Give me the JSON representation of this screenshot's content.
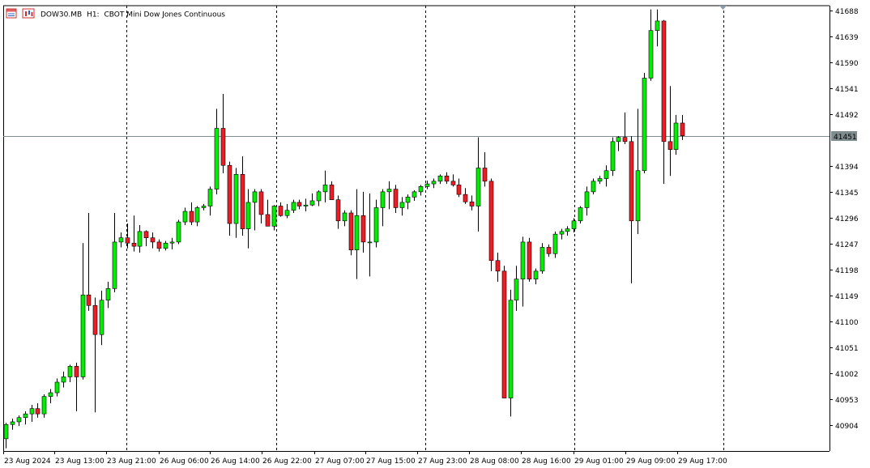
{
  "window": {
    "symbol": "DOW30.MB",
    "timeframe": "H1:",
    "description": "CBOT Mini Dow Jones Continuous",
    "icons": [
      "symbol-list-icon",
      "chart-type-icon"
    ]
  },
  "colors": {
    "bull": "#00ee00",
    "bear": "#ee1c24",
    "outline": "#000000",
    "price_line": "#7f8c8d",
    "price_label_bg": "#7f8c8d",
    "grid_separator": "#000000"
  },
  "chart_data": {
    "type": "candlestick",
    "title": "",
    "ylim": [
      40860,
      41710
    ],
    "current_price_label": "41451",
    "y_ticks": [
      41688,
      41639,
      41590,
      41541,
      41492,
      41394,
      41345,
      41296,
      41247,
      41198,
      41149,
      41100,
      41051,
      41002,
      40953,
      40904
    ],
    "x_labels": [
      "23 Aug 2024",
      "23 Aug 13:00",
      "23 Aug 21:00",
      "26 Aug 06:00",
      "26 Aug 14:00",
      "26 Aug 22:00",
      "27 Aug 07:00",
      "27 Aug 15:00",
      "27 Aug 23:00",
      "28 Aug 08:00",
      "28 Aug 16:00",
      "29 Aug 01:00",
      "29 Aug 09:00",
      "29 Aug 17:00"
    ],
    "candles": [
      {
        "o": 40878,
        "h": 40908,
        "l": 40860,
        "c": 40905
      },
      {
        "o": 40905,
        "h": 40916,
        "l": 40895,
        "c": 40910
      },
      {
        "o": 40910,
        "h": 40922,
        "l": 40902,
        "c": 40918
      },
      {
        "o": 40918,
        "h": 40930,
        "l": 40905,
        "c": 40925
      },
      {
        "o": 40925,
        "h": 40942,
        "l": 40910,
        "c": 40935
      },
      {
        "o": 40935,
        "h": 40945,
        "l": 40918,
        "c": 40925
      },
      {
        "o": 40925,
        "h": 40962,
        "l": 40918,
        "c": 40958
      },
      {
        "o": 40958,
        "h": 40972,
        "l": 40945,
        "c": 40965
      },
      {
        "o": 40965,
        "h": 40992,
        "l": 40958,
        "c": 40985
      },
      {
        "o": 40985,
        "h": 41005,
        "l": 40975,
        "c": 40995
      },
      {
        "o": 40995,
        "h": 41018,
        "l": 40985,
        "c": 41015
      },
      {
        "o": 41015,
        "h": 41022,
        "l": 40930,
        "c": 40995
      },
      {
        "o": 40995,
        "h": 41248,
        "l": 40990,
        "c": 41150
      },
      {
        "o": 41150,
        "h": 41305,
        "l": 41120,
        "c": 41130
      },
      {
        "o": 41130,
        "h": 41145,
        "l": 40928,
        "c": 41075
      },
      {
        "o": 41075,
        "h": 41158,
        "l": 41055,
        "c": 41140
      },
      {
        "o": 41140,
        "h": 41175,
        "l": 41125,
        "c": 41162
      },
      {
        "o": 41162,
        "h": 41305,
        "l": 41155,
        "c": 41250
      },
      {
        "o": 41250,
        "h": 41268,
        "l": 41240,
        "c": 41258
      },
      {
        "o": 41258,
        "h": 41285,
        "l": 41238,
        "c": 41248
      },
      {
        "o": 41248,
        "h": 41300,
        "l": 41232,
        "c": 41242
      },
      {
        "o": 41242,
        "h": 41282,
        "l": 41230,
        "c": 41270
      },
      {
        "o": 41270,
        "h": 41272,
        "l": 41242,
        "c": 41258
      },
      {
        "o": 41258,
        "h": 41268,
        "l": 41238,
        "c": 41250
      },
      {
        "o": 41250,
        "h": 41255,
        "l": 41232,
        "c": 41238
      },
      {
        "o": 41238,
        "h": 41252,
        "l": 41234,
        "c": 41248
      },
      {
        "o": 41248,
        "h": 41258,
        "l": 41236,
        "c": 41250
      },
      {
        "o": 41250,
        "h": 41292,
        "l": 41246,
        "c": 41288
      },
      {
        "o": 41288,
        "h": 41315,
        "l": 41282,
        "c": 41308
      },
      {
        "o": 41308,
        "h": 41325,
        "l": 41282,
        "c": 41288
      },
      {
        "o": 41288,
        "h": 41318,
        "l": 41280,
        "c": 41315
      },
      {
        "o": 41315,
        "h": 41322,
        "l": 41310,
        "c": 41318
      },
      {
        "o": 41318,
        "h": 41355,
        "l": 41300,
        "c": 41350
      },
      {
        "o": 41350,
        "h": 41502,
        "l": 41340,
        "c": 41465
      },
      {
        "o": 41465,
        "h": 41530,
        "l": 41380,
        "c": 41395
      },
      {
        "o": 41395,
        "h": 41402,
        "l": 41262,
        "c": 41285
      },
      {
        "o": 41285,
        "h": 41390,
        "l": 41258,
        "c": 41378
      },
      {
        "o": 41378,
        "h": 41412,
        "l": 41262,
        "c": 41275
      },
      {
        "o": 41275,
        "h": 41350,
        "l": 41238,
        "c": 41325
      },
      {
        "o": 41325,
        "h": 41350,
        "l": 41272,
        "c": 41345
      },
      {
        "o": 41345,
        "h": 41350,
        "l": 41285,
        "c": 41302
      },
      {
        "o": 41302,
        "h": 41330,
        "l": 41280,
        "c": 41280
      },
      {
        "o": 41280,
        "h": 41320,
        "l": 41272,
        "c": 41318
      },
      {
        "o": 41318,
        "h": 41325,
        "l": 41298,
        "c": 41300
      },
      {
        "o": 41300,
        "h": 41322,
        "l": 41295,
        "c": 41310
      },
      {
        "o": 41310,
        "h": 41330,
        "l": 41305,
        "c": 41325
      },
      {
        "o": 41325,
        "h": 41330,
        "l": 41312,
        "c": 41318
      },
      {
        "o": 41318,
        "h": 41332,
        "l": 41308,
        "c": 41320
      },
      {
        "o": 41320,
        "h": 41342,
        "l": 41318,
        "c": 41328
      },
      {
        "o": 41328,
        "h": 41348,
        "l": 41318,
        "c": 41345
      },
      {
        "o": 41345,
        "h": 41385,
        "l": 41325,
        "c": 41358
      },
      {
        "o": 41358,
        "h": 41365,
        "l": 41335,
        "c": 41330
      },
      {
        "o": 41330,
        "h": 41338,
        "l": 41275,
        "c": 41290
      },
      {
        "o": 41290,
        "h": 41310,
        "l": 41280,
        "c": 41305
      },
      {
        "o": 41305,
        "h": 41310,
        "l": 41225,
        "c": 41235
      },
      {
        "o": 41235,
        "h": 41350,
        "l": 41180,
        "c": 41300
      },
      {
        "o": 41300,
        "h": 41345,
        "l": 41230,
        "c": 41250
      },
      {
        "o": 41250,
        "h": 41342,
        "l": 41185,
        "c": 41250
      },
      {
        "o": 41250,
        "h": 41330,
        "l": 41240,
        "c": 41315
      },
      {
        "o": 41315,
        "h": 41350,
        "l": 41280,
        "c": 41345
      },
      {
        "o": 41345,
        "h": 41365,
        "l": 41312,
        "c": 41350
      },
      {
        "o": 41350,
        "h": 41358,
        "l": 41305,
        "c": 41315
      },
      {
        "o": 41315,
        "h": 41335,
        "l": 41300,
        "c": 41325
      },
      {
        "o": 41325,
        "h": 41340,
        "l": 41312,
        "c": 41335
      },
      {
        "o": 41335,
        "h": 41348,
        "l": 41328,
        "c": 41345
      },
      {
        "o": 41345,
        "h": 41358,
        "l": 41338,
        "c": 41355
      },
      {
        "o": 41355,
        "h": 41366,
        "l": 41350,
        "c": 41360
      },
      {
        "o": 41360,
        "h": 41370,
        "l": 41352,
        "c": 41365
      },
      {
        "o": 41365,
        "h": 41378,
        "l": 41360,
        "c": 41375
      },
      {
        "o": 41375,
        "h": 41382,
        "l": 41360,
        "c": 41365
      },
      {
        "o": 41365,
        "h": 41378,
        "l": 41355,
        "c": 41358
      },
      {
        "o": 41358,
        "h": 41370,
        "l": 41335,
        "c": 41340
      },
      {
        "o": 41340,
        "h": 41352,
        "l": 41322,
        "c": 41326
      },
      {
        "o": 41326,
        "h": 41338,
        "l": 41310,
        "c": 41318
      },
      {
        "o": 41318,
        "h": 41448,
        "l": 41270,
        "c": 41390
      },
      {
        "o": 41390,
        "h": 41420,
        "l": 41355,
        "c": 41365
      },
      {
        "o": 41365,
        "h": 41370,
        "l": 41195,
        "c": 41215
      },
      {
        "o": 41215,
        "h": 41230,
        "l": 41175,
        "c": 41195
      },
      {
        "o": 41195,
        "h": 41205,
        "l": 40955,
        "c": 40955
      },
      {
        "o": 40955,
        "h": 41160,
        "l": 40920,
        "c": 41140
      },
      {
        "o": 41140,
        "h": 41205,
        "l": 41120,
        "c": 41180
      },
      {
        "o": 41180,
        "h": 41260,
        "l": 41128,
        "c": 41250
      },
      {
        "o": 41250,
        "h": 41258,
        "l": 41175,
        "c": 41180
      },
      {
        "o": 41180,
        "h": 41200,
        "l": 41170,
        "c": 41195
      },
      {
        "o": 41195,
        "h": 41248,
        "l": 41190,
        "c": 41240
      },
      {
        "o": 41240,
        "h": 41245,
        "l": 41222,
        "c": 41228
      },
      {
        "o": 41228,
        "h": 41270,
        "l": 41220,
        "c": 41265
      },
      {
        "o": 41265,
        "h": 41275,
        "l": 41255,
        "c": 41270
      },
      {
        "o": 41270,
        "h": 41280,
        "l": 41262,
        "c": 41275
      },
      {
        "o": 41275,
        "h": 41295,
        "l": 41268,
        "c": 41290
      },
      {
        "o": 41290,
        "h": 41318,
        "l": 41285,
        "c": 41315
      },
      {
        "o": 41315,
        "h": 41355,
        "l": 41300,
        "c": 41345
      },
      {
        "o": 41345,
        "h": 41370,
        "l": 41340,
        "c": 41365
      },
      {
        "o": 41365,
        "h": 41375,
        "l": 41360,
        "c": 41370
      },
      {
        "o": 41370,
        "h": 41395,
        "l": 41355,
        "c": 41385
      },
      {
        "o": 41385,
        "h": 41448,
        "l": 41375,
        "c": 41440
      },
      {
        "o": 41440,
        "h": 41450,
        "l": 41422,
        "c": 41448
      },
      {
        "o": 41448,
        "h": 41495,
        "l": 41435,
        "c": 41440
      },
      {
        "o": 41440,
        "h": 41450,
        "l": 41172,
        "c": 41290
      },
      {
        "o": 41290,
        "h": 41502,
        "l": 41265,
        "c": 41385
      },
      {
        "o": 41385,
        "h": 41570,
        "l": 41380,
        "c": 41560
      },
      {
        "o": 41560,
        "h": 41690,
        "l": 41555,
        "c": 41650
      },
      {
        "o": 41650,
        "h": 41690,
        "l": 41620,
        "c": 41668
      },
      {
        "o": 41668,
        "h": 41670,
        "l": 41360,
        "c": 41440
      },
      {
        "o": 41440,
        "h": 41545,
        "l": 41375,
        "c": 41425
      },
      {
        "o": 41425,
        "h": 41490,
        "l": 41415,
        "c": 41475
      },
      {
        "o": 41475,
        "h": 41490,
        "l": 41443,
        "c": 41451
      }
    ]
  }
}
